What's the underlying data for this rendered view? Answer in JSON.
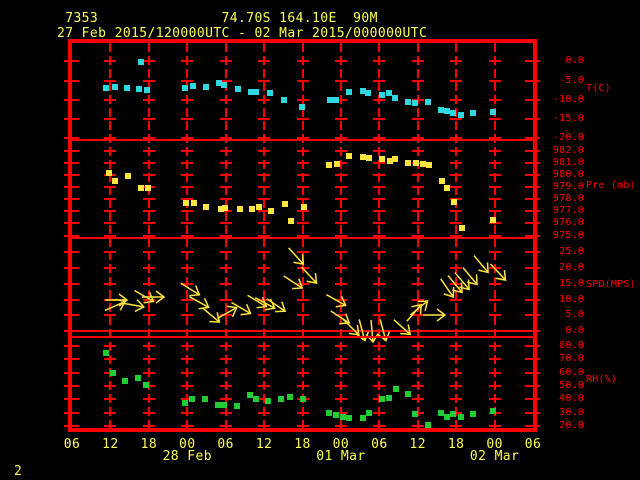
{
  "page_number": "2",
  "header": {
    "station_id": "7353",
    "latitude": "74.70S",
    "longitude": "164.10E",
    "elevation": "90M",
    "time_range": "27 Feb 2015/120000UTC - 02 Mar 2015/000000UTC"
  },
  "colors": {
    "background": "#000000",
    "red": "#ff0000",
    "text_yellow": "#ffff55",
    "data_yellow": "#ffe542",
    "cyan": "#2fd8e0",
    "green": "#22cc33"
  },
  "chart_data": {
    "type": "scatter",
    "title": "Station meteogram time series",
    "x_axis": {
      "hours_span": 72,
      "hour_labels": [
        "06",
        "12",
        "18",
        "00",
        "06",
        "12",
        "18",
        "00",
        "06",
        "12",
        "18",
        "00",
        "06"
      ],
      "date_labels": [
        {
          "label": "28 Feb",
          "hour": 18
        },
        {
          "label": "01 Mar",
          "hour": 42
        },
        {
          "label": "02 Mar",
          "hour": 66
        }
      ]
    },
    "panels": [
      {
        "name": "temperature",
        "unit_label": "T(C)",
        "marker": "square",
        "color_key": "cyan",
        "ylim": [
          -20.4,
          4.8
        ],
        "ticks": [
          {
            "v": 0,
            "label": "0.0"
          },
          {
            "v": -5,
            "label": "-5.0"
          },
          {
            "v": -10,
            "label": "-10.0"
          },
          {
            "v": -15,
            "label": "-15.0"
          },
          {
            "v": -20,
            "label": "-20.0"
          }
        ],
        "points": [
          [
            5.3,
            -6.9
          ],
          [
            6.7,
            -6.6
          ],
          [
            8.6,
            -6.9
          ],
          [
            10.5,
            -7.2
          ],
          [
            10.8,
            -0.1
          ],
          [
            11.7,
            -7.4
          ],
          [
            17.7,
            -6.9
          ],
          [
            18.9,
            -6.4
          ],
          [
            20.9,
            -6.6
          ],
          [
            23.0,
            -5.6
          ],
          [
            23.8,
            -6.1
          ],
          [
            25.9,
            -7.2
          ],
          [
            28.0,
            -7.9
          ],
          [
            28.8,
            -7.9
          ],
          [
            30.9,
            -8.2
          ],
          [
            33.1,
            -10.0
          ],
          [
            35.9,
            -11.8
          ],
          [
            40.3,
            -10.0
          ],
          [
            41.3,
            -10.0
          ],
          [
            43.2,
            -7.8
          ],
          [
            45.5,
            -7.7
          ],
          [
            46.3,
            -8.2
          ],
          [
            48.4,
            -8.7
          ],
          [
            49.5,
            -8.2
          ],
          [
            50.5,
            -9.5
          ],
          [
            52.5,
            -10.5
          ],
          [
            53.6,
            -10.8
          ],
          [
            55.6,
            -10.5
          ],
          [
            57.7,
            -12.6
          ],
          [
            58.6,
            -12.9
          ],
          [
            59.5,
            -13.4
          ],
          [
            60.8,
            -13.9
          ],
          [
            62.7,
            -13.4
          ],
          [
            65.8,
            -13.1
          ]
        ]
      },
      {
        "name": "pressure",
        "unit_label": "Pre (mb)",
        "marker": "square",
        "color_key": "data_yellow",
        "ylim": [
          974.8,
          982.9
        ],
        "ticks": [
          {
            "v": 982,
            "label": "982.0"
          },
          {
            "v": 981,
            "label": "981.0"
          },
          {
            "v": 980,
            "label": "980.0"
          },
          {
            "v": 979,
            "label": "979.0"
          },
          {
            "v": 978,
            "label": "978.0"
          },
          {
            "v": 977,
            "label": "977.0"
          },
          {
            "v": 976,
            "label": "976.0"
          },
          {
            "v": 975,
            "label": "975.0"
          }
        ],
        "points": [
          [
            5.8,
            980.2
          ],
          [
            6.7,
            979.5
          ],
          [
            8.8,
            979.9
          ],
          [
            10.8,
            978.9
          ],
          [
            11.9,
            978.9
          ],
          [
            17.8,
            977.7
          ],
          [
            19.1,
            977.7
          ],
          [
            20.9,
            977.4
          ],
          [
            23.3,
            977.2
          ],
          [
            23.9,
            977.3
          ],
          [
            26.3,
            977.2
          ],
          [
            28.1,
            977.2
          ],
          [
            29.2,
            977.4
          ],
          [
            31.1,
            977.0
          ],
          [
            33.3,
            977.6
          ],
          [
            34.2,
            976.2
          ],
          [
            36.3,
            977.4
          ],
          [
            40.2,
            980.8
          ],
          [
            41.4,
            980.9
          ],
          [
            43.3,
            981.6
          ],
          [
            45.5,
            981.5
          ],
          [
            46.4,
            981.4
          ],
          [
            48.4,
            981.3
          ],
          [
            49.7,
            981.2
          ],
          [
            50.5,
            981.3
          ],
          [
            52.5,
            981.0
          ],
          [
            53.8,
            981.0
          ],
          [
            54.8,
            980.9
          ],
          [
            55.8,
            980.8
          ],
          [
            57.8,
            979.5
          ],
          [
            58.6,
            978.9
          ],
          [
            59.7,
            977.8
          ],
          [
            60.9,
            975.6
          ],
          [
            65.8,
            976.3
          ]
        ]
      },
      {
        "name": "wind-speed",
        "unit_label": "SPD(MPS)",
        "marker": "arrow",
        "color_key": "data_yellow",
        "ylim": [
          -1.8,
          29.4
        ],
        "baseline_value": 0,
        "ticks": [
          {
            "v": 25,
            "label": "25.0"
          },
          {
            "v": 20,
            "label": "20.0"
          },
          {
            "v": 15,
            "label": "15.0"
          },
          {
            "v": 10,
            "label": "10.0"
          },
          {
            "v": 5,
            "label": "5.0"
          },
          {
            "v": 0,
            "label": "0.0"
          }
        ],
        "points": [
          [
            6.7,
            7.9,
            -24
          ],
          [
            6.9,
            9.8,
            0
          ],
          [
            9.5,
            8.3,
            10
          ],
          [
            11.3,
            11.1,
            30
          ],
          [
            12.7,
            10.8,
            0
          ],
          [
            18.4,
            13.3,
            32
          ],
          [
            19.8,
            9.2,
            29
          ],
          [
            21.7,
            5.1,
            40
          ],
          [
            24.2,
            5.7,
            -29
          ],
          [
            26.4,
            7.3,
            30
          ],
          [
            28.9,
            9.5,
            31
          ],
          [
            30.2,
            8.9,
            28
          ],
          [
            31.9,
            8.3,
            34
          ],
          [
            34.5,
            15.5,
            33
          ],
          [
            35.0,
            23.7,
            48
          ],
          [
            37.0,
            17.7,
            47
          ],
          [
            41.3,
            9.8,
            29
          ],
          [
            41.9,
            4.5,
            33
          ],
          [
            43.6,
            1.3,
            45
          ],
          [
            45.3,
            0.4,
            75
          ],
          [
            46.9,
            0.1,
            85
          ],
          [
            48.6,
            0.4,
            75
          ],
          [
            51.6,
            1.3,
            42
          ],
          [
            53.4,
            5.7,
            -49
          ],
          [
            54.2,
            7.3,
            -39
          ],
          [
            56.6,
            5.1,
            0
          ],
          [
            58.6,
            13.6,
            55
          ],
          [
            59.8,
            14.9,
            50
          ],
          [
            60.9,
            15.8,
            50
          ],
          [
            62.2,
            17.4,
            50
          ],
          [
            63.9,
            21.2,
            50
          ],
          [
            66.6,
            18.7,
            47
          ]
        ]
      },
      {
        "name": "relative-humidity",
        "unit_label": "RH(%)",
        "marker": "square",
        "color_key": "green",
        "ylim": [
          18.5,
          86.8
        ],
        "ticks": [
          {
            "v": 80,
            "label": "80.0"
          },
          {
            "v": 70,
            "label": "70.0"
          },
          {
            "v": 60,
            "label": "60.0"
          },
          {
            "v": 50,
            "label": "50.0"
          },
          {
            "v": 40,
            "label": "40.0"
          },
          {
            "v": 30,
            "label": "30.0"
          },
          {
            "v": 20,
            "label": "20.0"
          }
        ],
        "points": [
          [
            5.3,
            75
          ],
          [
            6.4,
            60
          ],
          [
            8.3,
            54
          ],
          [
            10.3,
            56
          ],
          [
            11.6,
            51
          ],
          [
            17.7,
            37
          ],
          [
            18.8,
            40
          ],
          [
            20.8,
            40
          ],
          [
            22.8,
            36
          ],
          [
            23.8,
            36
          ],
          [
            25.8,
            35
          ],
          [
            27.8,
            43
          ],
          [
            28.8,
            40
          ],
          [
            30.6,
            39
          ],
          [
            32.7,
            40
          ],
          [
            34.1,
            42
          ],
          [
            36.1,
            40
          ],
          [
            40.2,
            30
          ],
          [
            41.3,
            28
          ],
          [
            42.3,
            27
          ],
          [
            43.3,
            26
          ],
          [
            45.5,
            26
          ],
          [
            46.4,
            30
          ],
          [
            48.4,
            40
          ],
          [
            49.5,
            41
          ],
          [
            50.6,
            48
          ],
          [
            52.5,
            44
          ],
          [
            53.6,
            29
          ],
          [
            55.6,
            21
          ],
          [
            57.7,
            30
          ],
          [
            58.6,
            27
          ],
          [
            59.5,
            29
          ],
          [
            60.8,
            27
          ],
          [
            62.7,
            29
          ],
          [
            65.8,
            31
          ]
        ]
      }
    ]
  }
}
